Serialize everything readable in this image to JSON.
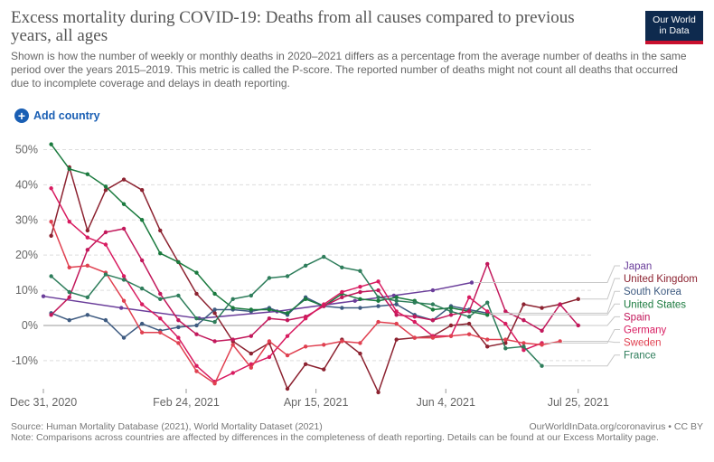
{
  "header": {
    "title": "Excess mortality during COVID-19: Deaths from all causes compared to previous years, all ages",
    "subtitle": "Shown is how the number of weekly or monthly deaths in 2020–2021 differs as a percentage from the average number of deaths in the same period over the years 2015–2019. This metric is called the P-score. The reported number of deaths might not count all deaths that occurred due to incomplete coverage and delays in death reporting.",
    "logo_line1": "Our World",
    "logo_line2": "in Data"
  },
  "controls": {
    "add_country": "Add country",
    "add_icon": "plus-circle-icon"
  },
  "footer": {
    "source": "Source: Human Mortality Database (2021), World Mortality Dataset (2021)",
    "credit": "OurWorldInData.org/coronavirus • CC BY",
    "note": "Note: Comparisons across countries are affected by differences in the completeness of death reporting. Details can be found at our Excess Mortality page."
  },
  "chart_data": {
    "type": "line",
    "ylim": [
      -18,
      55
    ],
    "yticks": [
      -10,
      0,
      10,
      20,
      30,
      40,
      50
    ],
    "ytick_labels": [
      "-10%",
      "0%",
      "10%",
      "20%",
      "30%",
      "40%",
      "50%"
    ],
    "xlim": [
      0,
      212
    ],
    "xticks": [
      {
        "x": 0,
        "label": "Dec 31, 2020"
      },
      {
        "x": 55,
        "label": "Feb 24, 2021"
      },
      {
        "x": 105,
        "label": "Apr 15, 2021"
      },
      {
        "x": 155,
        "label": "Jun 4, 2021"
      },
      {
        "x": 206,
        "label": "Jul 25, 2021"
      }
    ],
    "series": [
      {
        "name": "Japan",
        "color": "#6a3d9a",
        "points": [
          [
            0,
            8.3
          ],
          [
            30,
            5
          ],
          [
            60,
            2
          ],
          [
            90,
            4
          ],
          [
            120,
            7
          ],
          [
            135,
            8.5
          ],
          [
            150,
            10
          ],
          [
            165,
            12.2
          ]
        ]
      },
      {
        "name": "United Kingdom",
        "color": "#8c2230",
        "points": [
          [
            3,
            25.5
          ],
          [
            10,
            45
          ],
          [
            17,
            27
          ],
          [
            24,
            38.5
          ],
          [
            31,
            41.5
          ],
          [
            38,
            38.5
          ],
          [
            45,
            27
          ],
          [
            52,
            18
          ],
          [
            59,
            9
          ],
          [
            66,
            3.5
          ],
          [
            73,
            -4.5
          ],
          [
            80,
            -8
          ],
          [
            87,
            -5
          ],
          [
            94,
            -18
          ],
          [
            101,
            -11
          ],
          [
            108,
            -12.5
          ],
          [
            115,
            -4
          ],
          [
            122,
            -8
          ],
          [
            129,
            -19
          ],
          [
            136,
            -4
          ],
          [
            143,
            -3.5
          ],
          [
            150,
            -3
          ],
          [
            157,
            0
          ],
          [
            164,
            0.5
          ],
          [
            171,
            -6
          ],
          [
            178,
            -5
          ],
          [
            185,
            6
          ],
          [
            192,
            5
          ],
          [
            199,
            6
          ],
          [
            206,
            7.5
          ]
        ]
      },
      {
        "name": "South Korea",
        "color": "#3d5a80",
        "points": [
          [
            3,
            3.5
          ],
          [
            10,
            1.5
          ],
          [
            17,
            3
          ],
          [
            24,
            1.5
          ],
          [
            31,
            -3.5
          ],
          [
            38,
            0.5
          ],
          [
            45,
            -1.5
          ],
          [
            52,
            -0.5
          ],
          [
            59,
            0
          ],
          [
            66,
            4.5
          ],
          [
            73,
            4.5
          ],
          [
            80,
            4
          ],
          [
            87,
            5
          ],
          [
            94,
            3
          ],
          [
            101,
            8
          ],
          [
            108,
            5.5
          ],
          [
            115,
            5
          ],
          [
            122,
            5
          ],
          [
            129,
            5.5
          ],
          [
            136,
            6
          ],
          [
            143,
            3
          ],
          [
            150,
            1.5
          ],
          [
            157,
            5.5
          ],
          [
            164,
            4.5
          ],
          [
            171,
            3.5
          ]
        ]
      },
      {
        "name": "United States",
        "color": "#1a7a3e",
        "points": [
          [
            3,
            51.5
          ],
          [
            10,
            44.5
          ],
          [
            17,
            43
          ],
          [
            24,
            39.5
          ],
          [
            31,
            34.5
          ],
          [
            38,
            30
          ],
          [
            45,
            20.5
          ],
          [
            52,
            18
          ],
          [
            59,
            15
          ],
          [
            66,
            9
          ],
          [
            73,
            5
          ],
          [
            80,
            4.5
          ],
          [
            87,
            4.5
          ],
          [
            94,
            3.5
          ],
          [
            101,
            7.5
          ],
          [
            108,
            5.5
          ],
          [
            115,
            9
          ],
          [
            122,
            7.5
          ],
          [
            129,
            7
          ],
          [
            136,
            8
          ],
          [
            143,
            7
          ],
          [
            150,
            4.5
          ],
          [
            157,
            5
          ],
          [
            164,
            4
          ],
          [
            171,
            3
          ]
        ]
      },
      {
        "name": "Spain",
        "color": "#c2185b",
        "points": [
          [
            3,
            3
          ],
          [
            10,
            8
          ],
          [
            17,
            21.5
          ],
          [
            24,
            26.5
          ],
          [
            31,
            27.5
          ],
          [
            38,
            18.5
          ],
          [
            45,
            9
          ],
          [
            52,
            1.5
          ],
          [
            59,
            -2.5
          ],
          [
            66,
            -4.5
          ],
          [
            73,
            -4
          ],
          [
            80,
            -3
          ],
          [
            87,
            2
          ],
          [
            94,
            1.5
          ],
          [
            101,
            2.5
          ],
          [
            108,
            5.5
          ],
          [
            115,
            8
          ],
          [
            122,
            9.5
          ],
          [
            129,
            10
          ],
          [
            136,
            3
          ],
          [
            143,
            2.5
          ],
          [
            150,
            1.5
          ],
          [
            157,
            3
          ],
          [
            164,
            4
          ],
          [
            171,
            17.5
          ],
          [
            178,
            4
          ],
          [
            185,
            1.5
          ],
          [
            192,
            -1.5
          ],
          [
            199,
            6
          ],
          [
            206,
            0
          ]
        ]
      },
      {
        "name": "Germany",
        "color": "#d81b60",
        "points": [
          [
            3,
            39
          ],
          [
            10,
            29.5
          ],
          [
            17,
            25
          ],
          [
            24,
            23
          ],
          [
            31,
            14
          ],
          [
            38,
            6
          ],
          [
            45,
            2
          ],
          [
            52,
            -3.5
          ],
          [
            59,
            -11.5
          ],
          [
            66,
            -16
          ],
          [
            73,
            -13.5
          ],
          [
            80,
            -11
          ],
          [
            87,
            -9
          ],
          [
            94,
            -3
          ],
          [
            101,
            2
          ],
          [
            108,
            6
          ],
          [
            115,
            9.5
          ],
          [
            122,
            11
          ],
          [
            129,
            12.5
          ],
          [
            136,
            4
          ],
          [
            143,
            1
          ],
          [
            150,
            -3
          ],
          [
            157,
            -3
          ],
          [
            164,
            8
          ],
          [
            171,
            4
          ],
          [
            178,
            0.5
          ],
          [
            185,
            -7
          ],
          [
            192,
            -5
          ]
        ]
      },
      {
        "name": "Sweden",
        "color": "#e04050",
        "points": [
          [
            3,
            29.5
          ],
          [
            10,
            16.5
          ],
          [
            17,
            17
          ],
          [
            24,
            15
          ],
          [
            31,
            7
          ],
          [
            38,
            -2
          ],
          [
            45,
            -2
          ],
          [
            52,
            -5
          ],
          [
            59,
            -13
          ],
          [
            66,
            -16.5
          ],
          [
            73,
            -5.5
          ],
          [
            80,
            -12
          ],
          [
            87,
            -4.5
          ],
          [
            94,
            -8.5
          ],
          [
            101,
            -6
          ],
          [
            108,
            -5.5
          ],
          [
            115,
            -4.5
          ],
          [
            122,
            -5
          ],
          [
            129,
            1
          ],
          [
            136,
            0.5
          ],
          [
            143,
            -3.5
          ],
          [
            150,
            -3.5
          ],
          [
            157,
            -3
          ],
          [
            164,
            -2.5
          ],
          [
            171,
            -4
          ],
          [
            178,
            -4
          ],
          [
            185,
            -5
          ],
          [
            192,
            -5.5
          ],
          [
            199,
            -4.5
          ]
        ]
      },
      {
        "name": "France",
        "color": "#2e7d5b",
        "points": [
          [
            3,
            14
          ],
          [
            10,
            9.5
          ],
          [
            17,
            8
          ],
          [
            24,
            14.5
          ],
          [
            31,
            13
          ],
          [
            38,
            10.5
          ],
          [
            45,
            7.5
          ],
          [
            52,
            8.5
          ],
          [
            59,
            2
          ],
          [
            66,
            1
          ],
          [
            73,
            7.5
          ],
          [
            80,
            8.5
          ],
          [
            87,
            13.5
          ],
          [
            94,
            14
          ],
          [
            101,
            17
          ],
          [
            108,
            19.5
          ],
          [
            115,
            16.5
          ],
          [
            122,
            15.5
          ],
          [
            129,
            8
          ],
          [
            136,
            7
          ],
          [
            143,
            6.5
          ],
          [
            150,
            6
          ],
          [
            157,
            4
          ],
          [
            164,
            2.5
          ],
          [
            171,
            6.5
          ],
          [
            178,
            -6.5
          ],
          [
            185,
            -6
          ],
          [
            192,
            -11.5
          ]
        ]
      }
    ],
    "legend_order": [
      "Japan",
      "United Kingdom",
      "South Korea",
      "United States",
      "Spain",
      "Germany",
      "Sweden",
      "France"
    ]
  }
}
